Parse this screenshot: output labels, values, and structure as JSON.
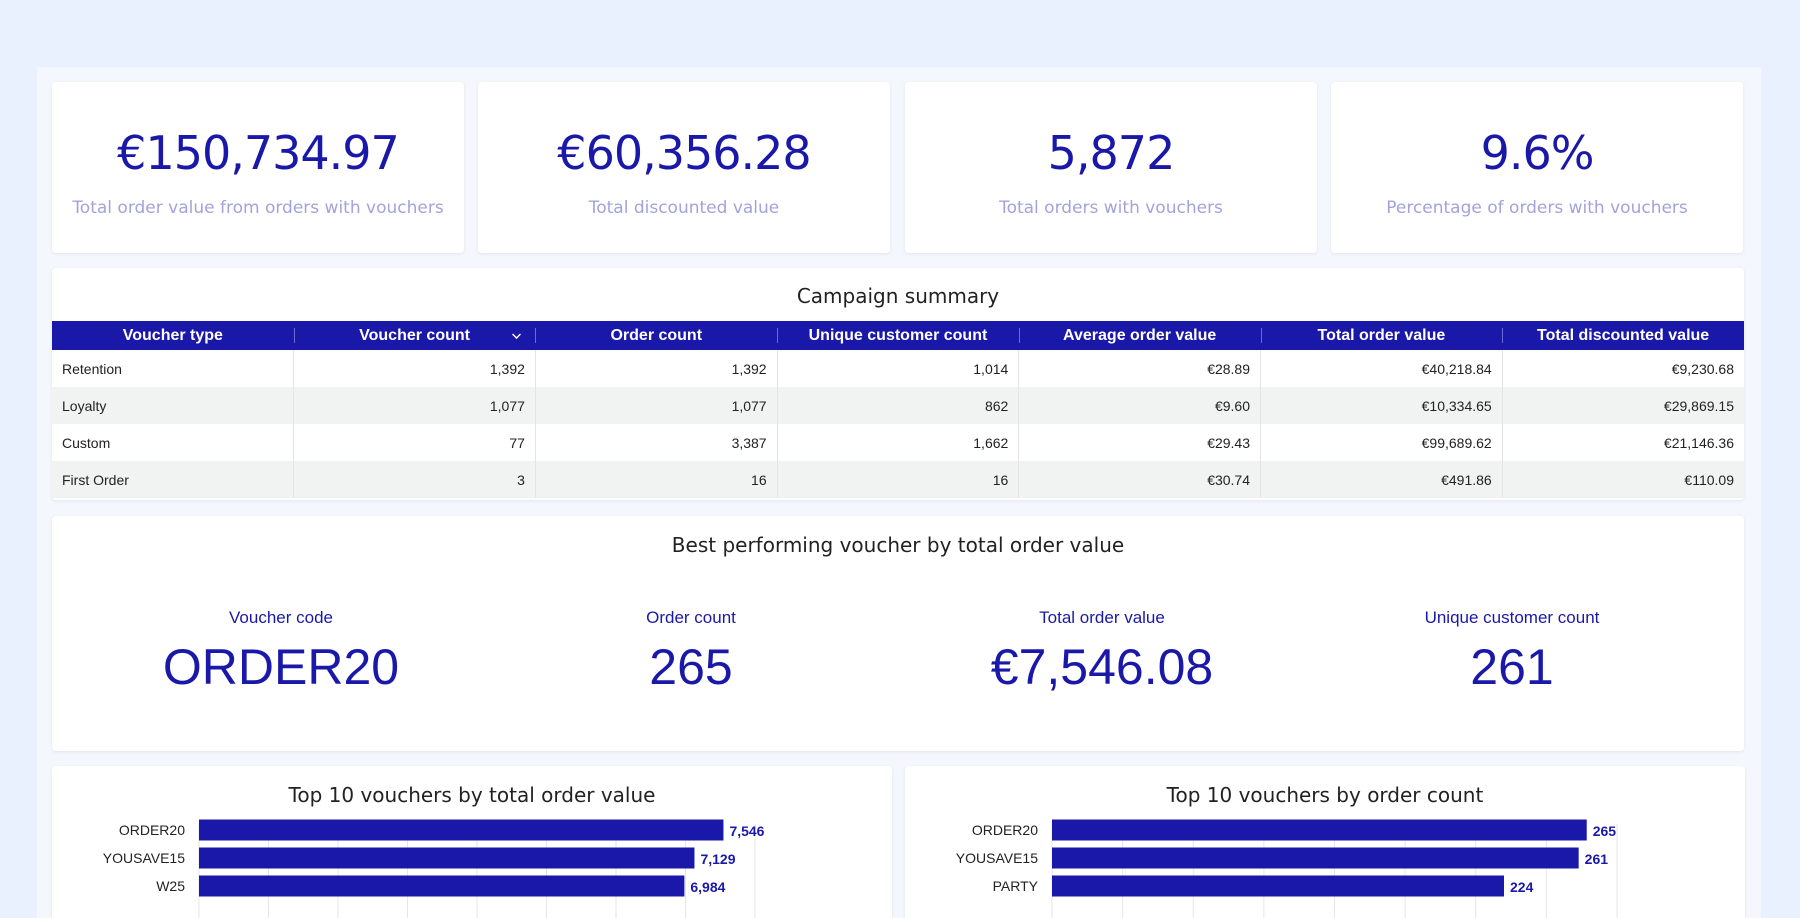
{
  "kpis": [
    {
      "value": "€150,734.97",
      "label": "Total order value from orders with vouchers"
    },
    {
      "value": "€60,356.28",
      "label": "Total discounted value"
    },
    {
      "value": "5,872",
      "label": "Total orders with vouchers"
    },
    {
      "value": "9.6%",
      "label": "Percentage of orders with vouchers"
    }
  ],
  "summary": {
    "title": "Campaign summary",
    "headers": [
      "Voucher type",
      "Voucher count",
      "Order count",
      "Unique customer count",
      "Average order value",
      "Total order value",
      "Total discounted value"
    ],
    "rows": [
      [
        "Retention",
        "1,392",
        "1,392",
        "1,014",
        "€28.89",
        "€40,218.84",
        "€9,230.68"
      ],
      [
        "Loyalty",
        "1,077",
        "1,077",
        "862",
        "€9.60",
        "€10,334.65",
        "€29,869.15"
      ],
      [
        "Custom",
        "77",
        "3,387",
        "1,662",
        "€29.43",
        "€99,689.62",
        "€21,146.36"
      ],
      [
        "First Order",
        "3",
        "16",
        "16",
        "€30.74",
        "€491.86",
        "€110.09"
      ]
    ],
    "sort_icon": "chevron-down-icon"
  },
  "best": {
    "title": "Best performing voucher by total order value",
    "items": [
      {
        "label": "Voucher code",
        "value": "ORDER20"
      },
      {
        "label": "Order count",
        "value": "265"
      },
      {
        "label": "Total order value",
        "value": "€7,546.08"
      },
      {
        "label": "Unique customer count",
        "value": "261"
      }
    ]
  },
  "chart_data": [
    {
      "type": "bar",
      "title": "Top 10 vouchers by total order value",
      "categories": [
        "ORDER20",
        "YOUSAVE15",
        "W25"
      ],
      "values": [
        7546,
        7129,
        6984
      ],
      "value_labels": [
        "7,546",
        "7,129",
        "6,984"
      ],
      "xlim": [
        0,
        8000
      ],
      "orientation": "horizontal",
      "color": "#1a18a8",
      "grid": true
    },
    {
      "type": "bar",
      "title": "Top 10 vouchers by order count",
      "categories": [
        "ORDER20",
        "YOUSAVE15",
        "PARTY"
      ],
      "values": [
        265,
        261,
        224
      ],
      "value_labels": [
        "265",
        "261",
        "224"
      ],
      "xlim": [
        0,
        280
      ],
      "orientation": "horizontal",
      "color": "#1a18a8",
      "grid": true
    }
  ],
  "colors": {
    "accent": "#1a18a8",
    "label_muted": "#a3a3dc",
    "background": "#e9f0fe"
  }
}
